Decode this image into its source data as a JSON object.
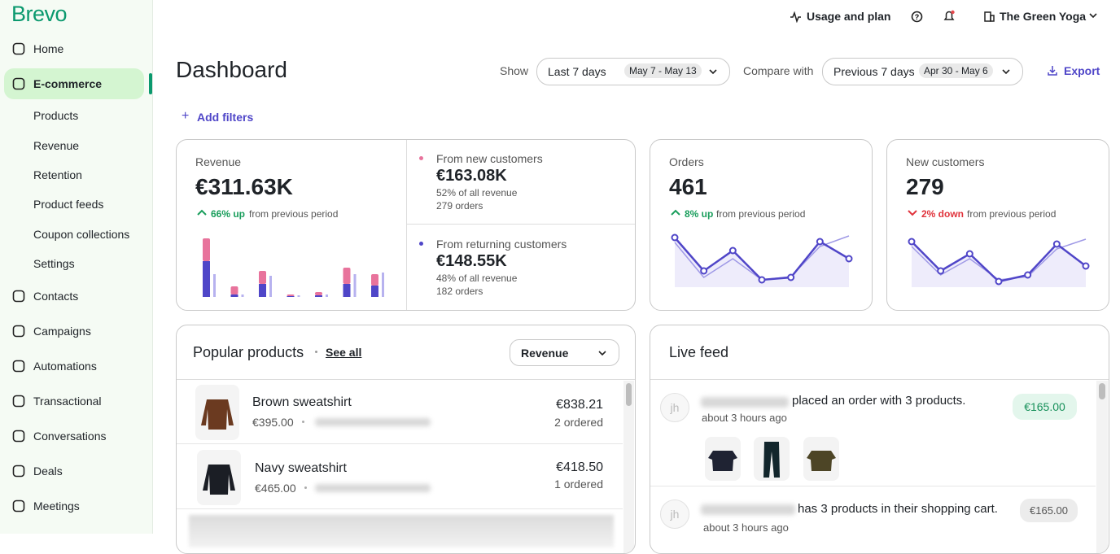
{
  "sidebar": {
    "logo": "Brevo",
    "nav_top": [
      "Home",
      "E-commerce"
    ],
    "ecommerce_sub": [
      "Products",
      "Revenue",
      "Retention",
      "Product feeds",
      "Coupon collections",
      "Settings"
    ],
    "nav_bottom": [
      "Contacts",
      "Campaigns",
      "Automations",
      "Transactional",
      "Conversations",
      "Deals",
      "Meetings"
    ]
  },
  "topbar": {
    "usage": "Usage and plan",
    "account": "The Green Yoga"
  },
  "header": {
    "title": "Dashboard",
    "show_label": "Show",
    "period": "Last 7 days",
    "period_dates": "May 7 - May 13",
    "compare_label": "Compare with",
    "compare": "Previous 7 days",
    "compare_dates": "Apr 30 - May 6",
    "export": "Export",
    "add_filters": "Add filters"
  },
  "revenue": {
    "label": "Revenue",
    "value": "€311.63K",
    "change": "66% up",
    "change_note": "from previous period",
    "new_customers": {
      "label": "From new customers",
      "value": "€163.08K",
      "share": "52% of all revenue",
      "orders": "279 orders"
    },
    "returning_customers": {
      "label": "From returning customers",
      "value": "€148.55K",
      "share": "48% of all revenue",
      "orders": "182 orders"
    },
    "chart": {
      "new": [
        28,
        10,
        16,
        2,
        4,
        20,
        14
      ],
      "returning": [
        44,
        3,
        16,
        1,
        2,
        16,
        14
      ],
      "previous": [
        28,
        3,
        26,
        2,
        3,
        28,
        30
      ]
    }
  },
  "orders": {
    "label": "Orders",
    "value": "461",
    "change": "8% up",
    "change_note": "from previous period",
    "chart": {
      "current": [
        61,
        20,
        45,
        9,
        12,
        56,
        35
      ],
      "previous": [
        55,
        12,
        35,
        9,
        13,
        50,
        63
      ]
    }
  },
  "new_customers": {
    "label": "New customers",
    "value": "279",
    "change": "2% down",
    "change_note": "from previous period",
    "chart": {
      "current": [
        56,
        20,
        41,
        7,
        15,
        53,
        26
      ],
      "previous": [
        50,
        15,
        35,
        9,
        13,
        47,
        59
      ]
    }
  },
  "popular_products": {
    "title": "Popular products",
    "see_all": "See all",
    "sort": "Revenue",
    "rows": [
      {
        "name": "Brown sweatshirt",
        "price": "€395.00",
        "revenue": "€838.21",
        "ordered": "2 ordered"
      },
      {
        "name": "Navy sweatshirt",
        "price": "€465.00",
        "revenue": "€418.50",
        "ordered": "1 ordered"
      }
    ]
  },
  "live_feed": {
    "title": "Live feed",
    "items": [
      {
        "avatar": "jh",
        "text": "placed an order with 3 products.",
        "time": "about 3 hours ago",
        "amount": "€165.00"
      },
      {
        "avatar": "jh",
        "text": "has 3 products in their shopping cart.",
        "time": "about 3 hours ago",
        "amount": "€165.00"
      }
    ]
  }
}
